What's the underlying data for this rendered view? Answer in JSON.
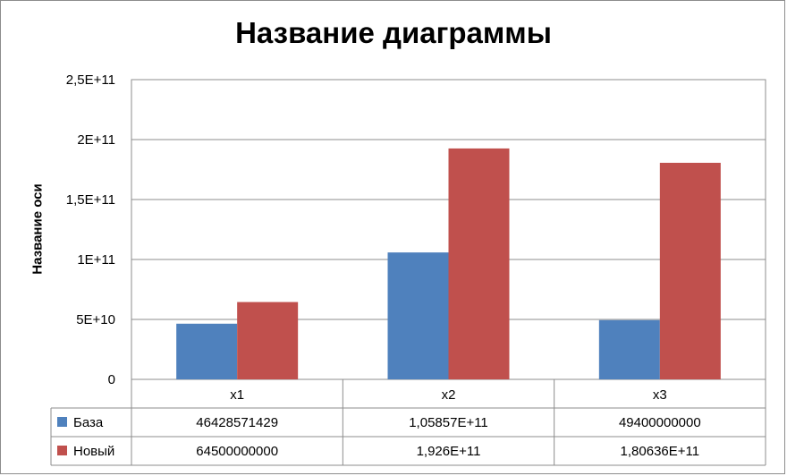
{
  "chart_data": {
    "type": "bar",
    "title": "Название диаграммы",
    "ylabel": "Название оси",
    "xlabel": "",
    "categories": [
      "x1",
      "x2",
      "x3"
    ],
    "series": [
      {
        "name": "База",
        "color": "#4F81BD",
        "values": [
          46428571429,
          105857000000,
          49400000000
        ],
        "labels": [
          "46428571429",
          "1,05857E+11",
          "49400000000"
        ]
      },
      {
        "name": "Новый",
        "color": "#C0504D",
        "values": [
          64500000000,
          192600000000,
          180636000000
        ],
        "labels": [
          "64500000000",
          "1,926E+11",
          "1,80636E+11"
        ]
      }
    ],
    "ylim": [
      0,
      250000000000
    ],
    "yticks": [
      0,
      50000000000,
      100000000000,
      150000000000,
      200000000000,
      250000000000
    ],
    "ytick_labels": [
      "0",
      "5E+10",
      "1E+11",
      "1,5E+11",
      "2E+11",
      "2,5E+11"
    ],
    "grid": true,
    "legend": "data-table"
  }
}
